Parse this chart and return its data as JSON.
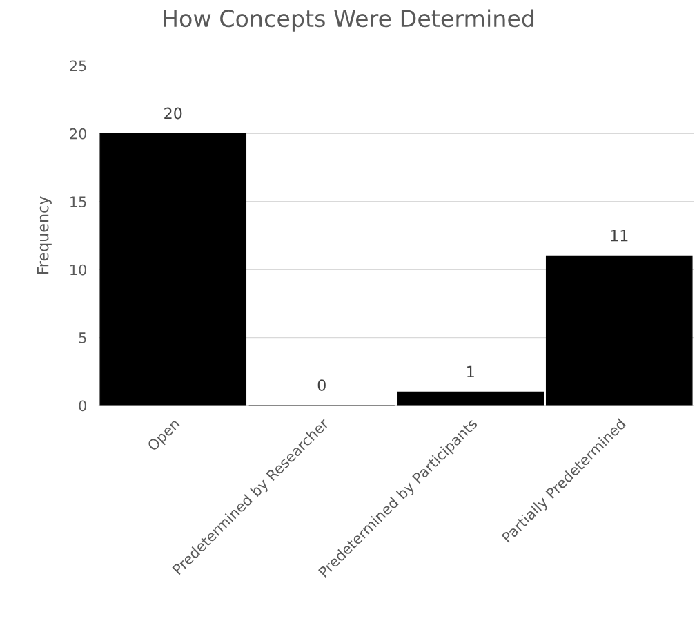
{
  "chart_data": {
    "type": "bar",
    "title": "How Concepts Were Determined",
    "ylabel": "Frequency",
    "categories": [
      "Open",
      "Predetermined by Researcher",
      "Predetermined by Participants",
      "Partially Predetermined"
    ],
    "values": [
      20,
      0,
      1,
      11
    ],
    "color": "#000000",
    "ylim": [
      0,
      25
    ],
    "yticks": [
      0,
      5,
      10,
      15,
      20,
      25
    ],
    "grid": "y",
    "data_labels": true
  }
}
